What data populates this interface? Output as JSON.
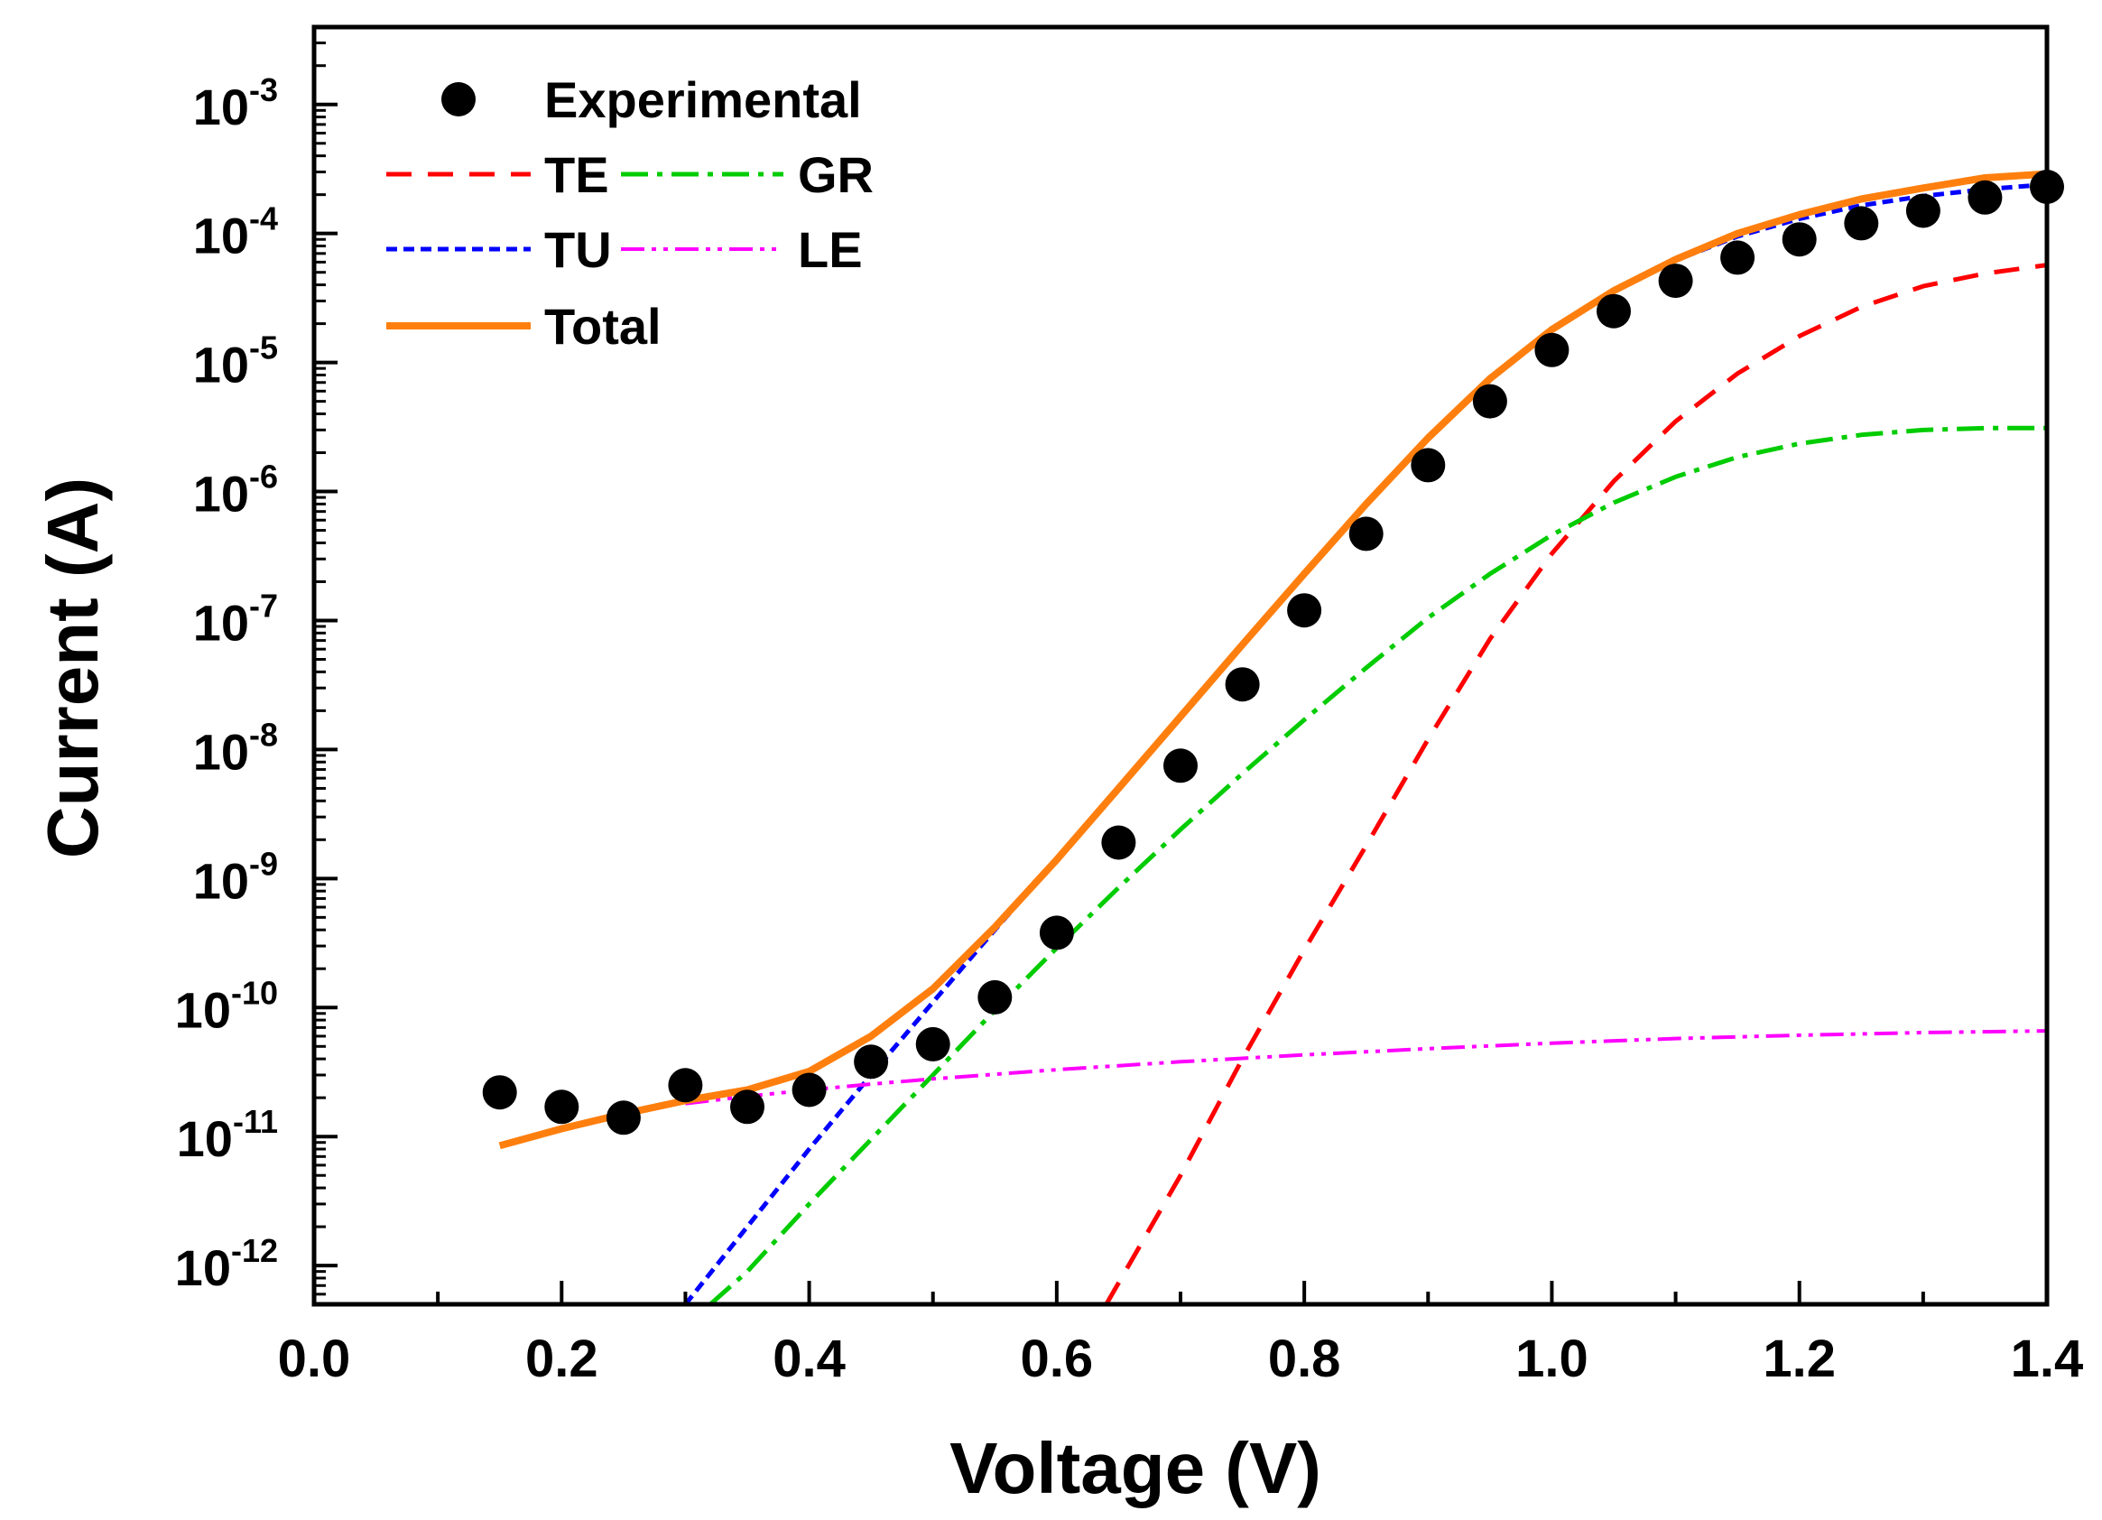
{
  "chart_data": {
    "type": "scatter",
    "title": "",
    "xlabel": "Voltage (V)",
    "ylabel": "Current (A)",
    "xlim": [
      0.0,
      1.4
    ],
    "ylim_log10": [
      -12.3,
      -2.4
    ],
    "y_scale": "log",
    "x_ticks": [
      "0.0",
      "0.2",
      "0.4",
      "0.6",
      "0.8",
      "1.0",
      "1.2",
      "1.4"
    ],
    "y_ticks": [
      {
        "base": "10",
        "exp": "-3"
      },
      {
        "base": "10",
        "exp": "-4"
      },
      {
        "base": "10",
        "exp": "-5"
      },
      {
        "base": "10",
        "exp": "-6"
      },
      {
        "base": "10",
        "exp": "-7"
      },
      {
        "base": "10",
        "exp": "-8"
      },
      {
        "base": "10",
        "exp": "-9"
      },
      {
        "base": "10",
        "exp": "-10"
      },
      {
        "base": "10",
        "exp": "-11"
      },
      {
        "base": "10",
        "exp": "-12"
      }
    ],
    "legend_position": "top-left",
    "legend": {
      "experimental": "Experimental",
      "te": "TE",
      "gr": "GR",
      "tu": "TU",
      "le": "LE",
      "total": "Total"
    },
    "colors": {
      "experimental": "#000000",
      "te": "#ff0000",
      "gr": "#00cc00",
      "tu": "#0000ff",
      "le": "#ff00ff",
      "total": "#ff7f0e"
    },
    "experimental": {
      "x": [
        0.15,
        0.2,
        0.25,
        0.3,
        0.35,
        0.4,
        0.45,
        0.5,
        0.55,
        0.6,
        0.65,
        0.7,
        0.75,
        0.8,
        0.85,
        0.9,
        0.95,
        1.0,
        1.05,
        1.1,
        1.15,
        1.2,
        1.25,
        1.3,
        1.35,
        1.4
      ],
      "y": [
        2.2e-11,
        1.7e-11,
        1.4e-11,
        2.5e-11,
        1.7e-11,
        2.3e-11,
        3.8e-11,
        5.2e-11,
        1.2e-10,
        3.8e-10,
        1.9e-09,
        7.5e-09,
        3.2e-08,
        1.2e-07,
        4.7e-07,
        1.6e-06,
        5e-06,
        1.25e-05,
        2.5e-05,
        4.3e-05,
        6.5e-05,
        9e-05,
        0.00012,
        0.00015,
        0.00019,
        0.00023
      ]
    },
    "series": [
      {
        "name": "TE",
        "style": "dashed",
        "x": [
          0.64,
          0.7,
          0.75,
          0.8,
          0.85,
          0.9,
          0.95,
          1.0,
          1.05,
          1.1,
          1.15,
          1.2,
          1.25,
          1.3,
          1.35,
          1.4
        ],
        "y": [
          5e-13,
          5e-12,
          4e-11,
          2.8e-10,
          1.8e-09,
          1.2e-08,
          7.2e-08,
          3.3e-07,
          1.2e-06,
          3.5e-06,
          8.2e-06,
          1.6e-05,
          2.7e-05,
          3.9e-05,
          4.9e-05,
          5.7e-05
        ]
      },
      {
        "name": "GR",
        "style": "dashdot",
        "x": [
          0.32,
          0.35,
          0.4,
          0.45,
          0.5,
          0.55,
          0.6,
          0.65,
          0.7,
          0.75,
          0.8,
          0.85,
          0.9,
          0.95,
          1.0,
          1.05,
          1.1,
          1.15,
          1.2,
          1.25,
          1.3,
          1.35,
          1.4
        ],
        "y": [
          5e-13,
          9e-13,
          3e-12,
          9.5e-12,
          3e-11,
          9.5e-11,
          2.9e-10,
          8.5e-10,
          2.4e-09,
          6.5e-09,
          1.7e-08,
          4.3e-08,
          1.05e-07,
          2.3e-07,
          4.6e-07,
          8.2e-07,
          1.3e-06,
          1.85e-06,
          2.35e-06,
          2.75e-06,
          3e-06,
          3.1e-06,
          3.1e-06
        ]
      },
      {
        "name": "TU",
        "style": "dotted",
        "x": [
          0.3,
          0.35,
          0.4,
          0.45,
          0.5,
          0.55,
          0.6,
          0.65,
          0.7,
          0.75,
          0.8,
          0.85,
          0.9,
          0.95,
          1.0,
          1.05,
          1.1,
          1.15,
          1.2,
          1.25,
          1.3,
          1.35,
          1.4
        ],
        "y": [
          5e-13,
          2e-12,
          8e-12,
          3e-11,
          1.1e-10,
          4e-10,
          1.4e-09,
          5e-09,
          1.8e-08,
          6.5e-08,
          2.3e-07,
          8e-07,
          2.6e-06,
          7.5e-06,
          1.8e-05,
          3.6e-05,
          6.2e-05,
          9.5e-05,
          0.00013,
          0.000165,
          0.000195,
          0.00022,
          0.00024
        ]
      },
      {
        "name": "LE",
        "style": "dashdotdot",
        "x": [
          0.3,
          0.35,
          0.4,
          0.45,
          0.5,
          0.6,
          0.7,
          0.8,
          0.9,
          1.0,
          1.1,
          1.2,
          1.3,
          1.4
        ],
        "y": [
          1.8e-11,
          2.05e-11,
          2.3e-11,
          2.55e-11,
          2.8e-11,
          3.3e-11,
          3.8e-11,
          4.3e-11,
          4.8e-11,
          5.3e-11,
          5.75e-11,
          6.1e-11,
          6.4e-11,
          6.6e-11
        ]
      },
      {
        "name": "Total",
        "style": "solid",
        "x": [
          0.15,
          0.2,
          0.25,
          0.3,
          0.35,
          0.4,
          0.45,
          0.5,
          0.55,
          0.6,
          0.65,
          0.7,
          0.75,
          0.8,
          0.85,
          0.9,
          0.95,
          1.0,
          1.05,
          1.1,
          1.15,
          1.2,
          1.25,
          1.3,
          1.35,
          1.4
        ],
        "y": [
          8.5e-12,
          1.15e-11,
          1.5e-11,
          1.9e-11,
          2.3e-11,
          3.2e-11,
          6e-11,
          1.4e-10,
          4.2e-10,
          1.4e-09,
          5e-09,
          1.8e-08,
          6.5e-08,
          2.3e-07,
          8e-07,
          2.6e-06,
          7.5e-06,
          1.8e-05,
          3.6e-05,
          6.3e-05,
          0.0001,
          0.00014,
          0.000185,
          0.000225,
          0.00027,
          0.00029
        ]
      }
    ]
  }
}
